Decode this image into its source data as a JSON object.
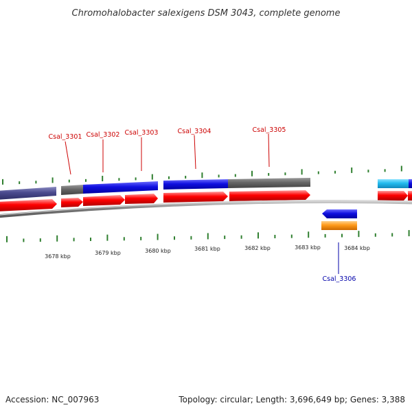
{
  "title": "Chromohalobacter salexigens DSM 3043, complete genome",
  "footer": {
    "accession": "Accession: NC_007963",
    "summary": "Topology: circular; Length: 3,696,649 bp; Genes: 3,388"
  },
  "colors": {
    "cds": "#ff0000",
    "backbone": "#808080",
    "tick": "#2f7f2f",
    "label_forward": "#cc0000",
    "label_reverse": "#0000aa",
    "feature_blue": "#1010e0",
    "feature_gray": "#666666",
    "feature_slate": "#4a4a8e",
    "feature_cyan": "#22bbee",
    "feature_orange": "#ff9a1a"
  },
  "ruler": {
    "labels": [
      "3678 kbp",
      "3679 kbp",
      "3680 kbp",
      "3681 kbp",
      "3682 kbp",
      "3683 kbp",
      "3684 kbp"
    ]
  },
  "gene_labels": [
    {
      "text": "Csal_3301",
      "strand": "forward"
    },
    {
      "text": "Csal_3302",
      "strand": "forward"
    },
    {
      "text": "Csal_3303",
      "strand": "forward"
    },
    {
      "text": "Csal_3304",
      "strand": "forward"
    },
    {
      "text": "Csal_3305",
      "strand": "forward"
    },
    {
      "text": "Csal_3306",
      "strand": "reverse"
    }
  ]
}
